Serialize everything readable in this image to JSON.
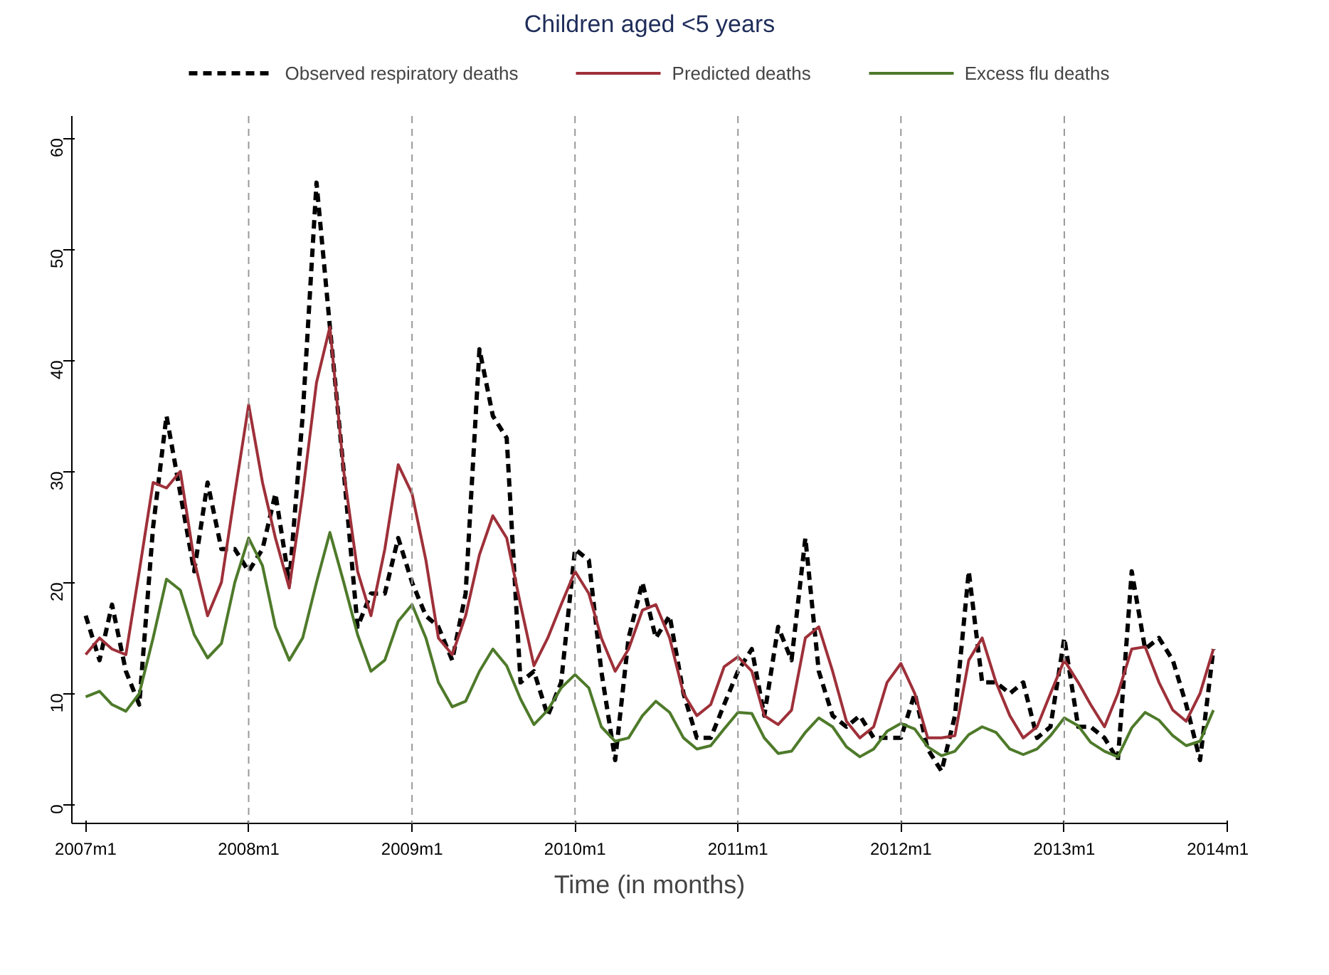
{
  "chart_data": {
    "type": "line",
    "title": "Children aged <5 years",
    "xlabel": "Time (in months)",
    "x": [
      "2007-01",
      "2007-02",
      "2007-03",
      "2007-04",
      "2007-05",
      "2007-06",
      "2007-07",
      "2007-08",
      "2007-09",
      "2007-10",
      "2007-11",
      "2007-12",
      "2008-01",
      "2008-02",
      "2008-03",
      "2008-04",
      "2008-05",
      "2008-06",
      "2008-07",
      "2008-08",
      "2008-09",
      "2008-10",
      "2008-11",
      "2008-12",
      "2009-01",
      "2009-02",
      "2009-03",
      "2009-04",
      "2009-05",
      "2009-06",
      "2009-07",
      "2009-08",
      "2009-09",
      "2009-10",
      "2009-11",
      "2009-12",
      "2010-01",
      "2010-02",
      "2010-03",
      "2010-04",
      "2010-05",
      "2010-06",
      "2010-07",
      "2010-08",
      "2010-09",
      "2010-10",
      "2010-11",
      "2010-12",
      "2011-01",
      "2011-02",
      "2011-03",
      "2011-04",
      "2011-05",
      "2011-06",
      "2011-07",
      "2011-08",
      "2011-09",
      "2011-10",
      "2011-11",
      "2011-12",
      "2012-01",
      "2012-02",
      "2012-03",
      "2012-04",
      "2012-05",
      "2012-06",
      "2012-07",
      "2012-08",
      "2012-09",
      "2012-10",
      "2012-11",
      "2012-12",
      "2013-01",
      "2013-02",
      "2013-03",
      "2013-04",
      "2013-05",
      "2013-06",
      "2013-07",
      "2013-08",
      "2013-09",
      "2013-10",
      "2013-11",
      "2013-12"
    ],
    "series": [
      {
        "name": "Observed respiratory deaths",
        "color": "#000000",
        "line_style": "dashed",
        "values": [
          17,
          13,
          18,
          12,
          9,
          25,
          35,
          28,
          21,
          29,
          23,
          23,
          21,
          23,
          28,
          20,
          35,
          56,
          43,
          30,
          16,
          19,
          19,
          24,
          20,
          17,
          16,
          13,
          19,
          41,
          35,
          33,
          11,
          12,
          8,
          11,
          23,
          22,
          12,
          4,
          15,
          20,
          15,
          17,
          10,
          6,
          6,
          9,
          12,
          14,
          8,
          16,
          13,
          24,
          12,
          8,
          7,
          8,
          6,
          6,
          6,
          10,
          5,
          3,
          8,
          21,
          11,
          11,
          10,
          11,
          6,
          7,
          15,
          7,
          7,
          6,
          4,
          21,
          14,
          15,
          13,
          9,
          4,
          14
        ]
      },
      {
        "name": "Predicted deaths",
        "color": "#9e3039",
        "line_style": "solid",
        "values": [
          13.5,
          15,
          14,
          13.5,
          21,
          29,
          28.5,
          30,
          22,
          17,
          20,
          28,
          36,
          29,
          24,
          19.5,
          28,
          38,
          43,
          30,
          21,
          17,
          23,
          30.6,
          28,
          22,
          15,
          13.5,
          17,
          22.5,
          26,
          24,
          18,
          12.5,
          15,
          18,
          21,
          19,
          15,
          12,
          14,
          17.5,
          18,
          15,
          10,
          8,
          9,
          12.4,
          13.3,
          12,
          8,
          7.2,
          8.5,
          15,
          16,
          12,
          7.5,
          6,
          7,
          11,
          12.7,
          10,
          6,
          6,
          6.2,
          13,
          15,
          11,
          8,
          6,
          7,
          10,
          13,
          11,
          9,
          7,
          10,
          14,
          14.2,
          11,
          8.5,
          7.5,
          10,
          14
        ]
      },
      {
        "name": "Excess flu deaths",
        "color": "#4e7a2a",
        "line_style": "solid",
        "values": [
          9.7,
          10.2,
          9,
          8.4,
          10,
          15,
          20.3,
          19.3,
          15.3,
          13.2,
          14.5,
          20,
          24,
          21.5,
          16,
          13,
          15,
          20,
          24.5,
          20,
          15.3,
          12,
          13,
          16.5,
          18,
          15,
          11,
          8.8,
          9.3,
          12,
          14,
          12.5,
          9.5,
          7.2,
          8.5,
          10.5,
          11.7,
          10.5,
          7,
          5.7,
          6,
          8,
          9.3,
          8.3,
          6,
          5,
          5.3,
          6.8,
          8.3,
          8.2,
          6,
          4.6,
          4.8,
          6.5,
          7.8,
          7,
          5.2,
          4.3,
          5,
          6.6,
          7.3,
          6.8,
          5.2,
          4.4,
          4.8,
          6.3,
          7,
          6.5,
          5,
          4.5,
          5,
          6.2,
          7.8,
          7.1,
          5.6,
          4.8,
          4.3,
          6.9,
          8.3,
          7.6,
          6.2,
          5.3,
          5.7,
          8.5
        ]
      }
    ],
    "xlim": [
      "2006-12",
      "2014-01"
    ],
    "ylim": [
      -1.7,
      62
    ],
    "xticks": [
      {
        "value": "2007-01",
        "label": "2007m1"
      },
      {
        "value": "2008-01",
        "label": "2008m1"
      },
      {
        "value": "2009-01",
        "label": "2009m1"
      },
      {
        "value": "2010-01",
        "label": "2010m1"
      },
      {
        "value": "2011-01",
        "label": "2011m1"
      },
      {
        "value": "2012-01",
        "label": "2012m1"
      },
      {
        "value": "2013-01",
        "label": "2013m1"
      },
      {
        "value": "2014-01",
        "label": "2014m1"
      }
    ],
    "yticks": [
      0,
      10,
      20,
      30,
      40,
      50,
      60
    ],
    "ref_lines": [
      {
        "axis": "x",
        "value": "2008-01",
        "color": "#999999",
        "line_style": "dashed"
      },
      {
        "axis": "x",
        "value": "2009-01",
        "color": "#999999",
        "line_style": "dashed"
      },
      {
        "axis": "x",
        "value": "2010-01",
        "color": "#999999",
        "line_style": "dashed"
      },
      {
        "axis": "x",
        "value": "2011-01",
        "color": "#999999",
        "line_style": "dashed"
      },
      {
        "axis": "x",
        "value": "2012-01",
        "color": "#999999",
        "line_style": "dashed"
      },
      {
        "axis": "x",
        "value": "2013-01",
        "color": "#999999",
        "line_style": "dashed"
      }
    ],
    "grid": false,
    "legend": "top"
  }
}
